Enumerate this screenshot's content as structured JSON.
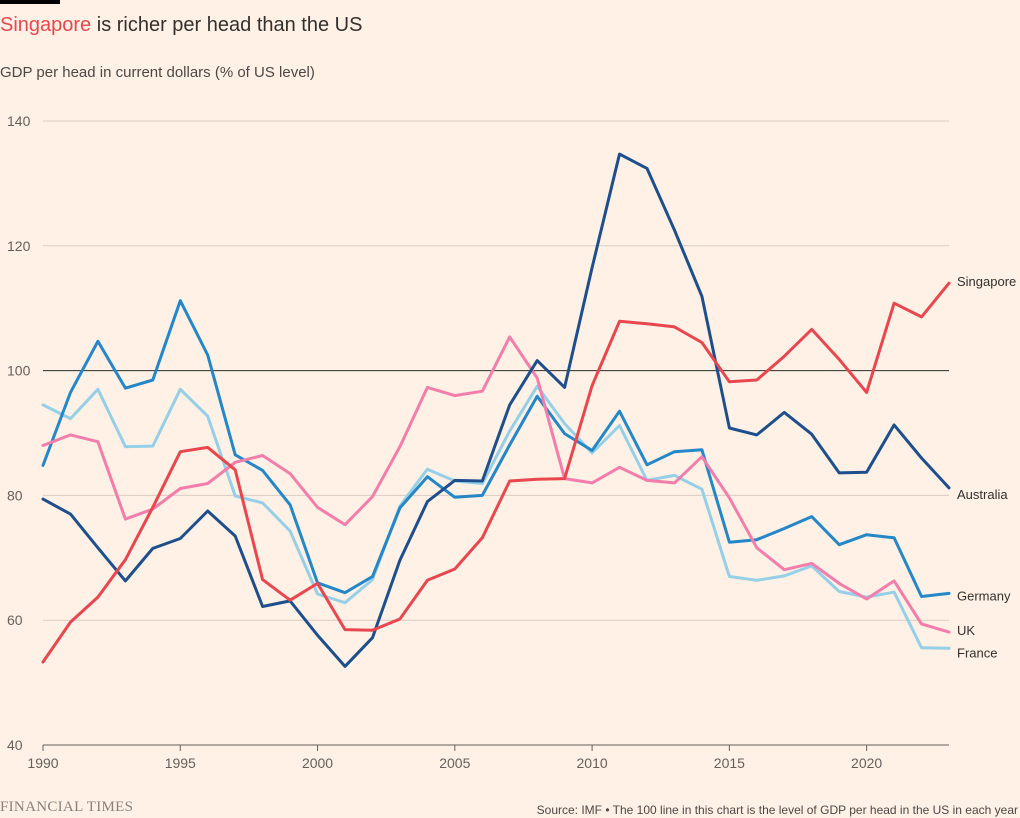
{
  "header": {
    "title_highlight": "Singapore",
    "title_rest": " is richer per head than the US",
    "subtitle": "GDP per head in current dollars (% of US level)"
  },
  "footer": {
    "logo": "FINANCIAL TIMES",
    "source": "Source: IMF • The 100 line in this chart is the level of GDP per head in the US in each year"
  },
  "colors": {
    "background": "#FFF1E5",
    "singapore": "#E8474F",
    "australia": "#1E4F8C",
    "germany": "#2487C8",
    "uk": "#F47EAB",
    "france": "#96CFE8",
    "grid": "#D9CCC1",
    "reference_line": "#33302E"
  },
  "chart_data": {
    "type": "line",
    "title": "Singapore is richer per head than the US",
    "subtitle": "GDP per head in current dollars (% of US level)",
    "x": [
      1990,
      1991,
      1992,
      1993,
      1994,
      1995,
      1996,
      1997,
      1998,
      1999,
      2000,
      2001,
      2002,
      2003,
      2004,
      2005,
      2006,
      2007,
      2008,
      2009,
      2010,
      2011,
      2012,
      2013,
      2014,
      2015,
      2016,
      2017,
      2018,
      2019,
      2020,
      2021,
      2022,
      2023
    ],
    "xlim": [
      1990,
      2023
    ],
    "ylim": [
      40,
      140
    ],
    "x_ticks": [
      1990,
      1995,
      2000,
      2005,
      2010,
      2015,
      2020
    ],
    "y_ticks": [
      40,
      60,
      80,
      100,
      120,
      140
    ],
    "reference_line": 100,
    "grid": "horizontal",
    "legend": "direct labels at right end of lines",
    "series": [
      {
        "name": "France",
        "color_key": "france",
        "values": [
          94.5,
          92.3,
          97,
          87.8,
          87.9,
          97,
          92.7,
          79.9,
          78.8,
          74.3,
          64.2,
          62.8,
          66.5,
          78.3,
          84.2,
          82.3,
          81.9,
          90.3,
          97.5,
          91.5,
          86.8,
          91.2,
          82.4,
          83.2,
          81,
          67,
          66.4,
          67.1,
          68.7,
          64.6,
          63.7,
          64.5,
          55.6,
          55.5
        ]
      },
      {
        "name": "Germany",
        "color_key": "germany",
        "values": [
          84.8,
          96.5,
          104.7,
          97.2,
          98.5,
          111.2,
          102.5,
          86.5,
          84,
          78.5,
          66,
          64.4,
          67,
          78,
          83,
          79.7,
          80,
          88.1,
          95.9,
          89.9,
          87.2,
          93.5,
          84.9,
          87,
          87.3,
          72.5,
          72.9,
          74.7,
          76.6,
          72.1,
          73.7,
          73.2,
          63.8,
          64.3
        ]
      },
      {
        "name": "UK",
        "color_key": "uk",
        "values": [
          88,
          89.7,
          88.6,
          76.2,
          77.8,
          81.1,
          81.9,
          85.3,
          86.4,
          83.5,
          78.1,
          75.3,
          79.8,
          87.8,
          97.3,
          96,
          96.7,
          105.4,
          98.8,
          82.7,
          82,
          84.5,
          82.4,
          82,
          86.2,
          79.6,
          71.6,
          68.1,
          69.1,
          65.9,
          63.4,
          66.3,
          59.4,
          58.1
        ]
      },
      {
        "name": "Australia",
        "color_key": "australia",
        "values": [
          79.4,
          77,
          71.6,
          66.3,
          71.5,
          73.1,
          77.5,
          73.5,
          62.2,
          63.1,
          57.6,
          52.6,
          57.2,
          69.6,
          79,
          82.4,
          82.3,
          94.5,
          101.6,
          97.3,
          116.5,
          134.7,
          132.4,
          122.5,
          111.9,
          90.8,
          89.7,
          93.3,
          89.8,
          83.6,
          83.7,
          91.3,
          86,
          81.2
        ]
      },
      {
        "name": "Singapore",
        "color_key": "singapore",
        "values": [
          53.3,
          59.7,
          63.7,
          69.7,
          78.1,
          87,
          87.7,
          84.1,
          66.5,
          63.2,
          65.9,
          58.5,
          58.4,
          60.2,
          66.4,
          68.2,
          73.2,
          82.3,
          82.6,
          82.7,
          97.6,
          107.9,
          107.5,
          107,
          104.5,
          98.2,
          98.5,
          102.3,
          106.6,
          101.8,
          96.5,
          110.8,
          108.6,
          114
        ]
      }
    ]
  }
}
